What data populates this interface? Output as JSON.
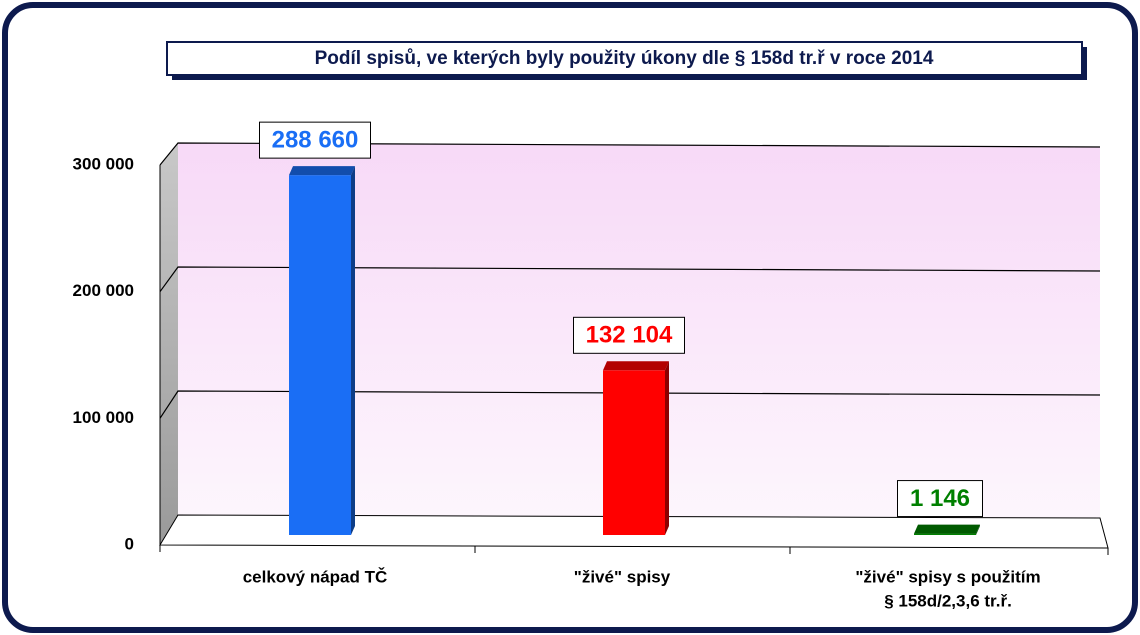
{
  "chart_data": {
    "type": "bar3d",
    "title": "Podíl spisů, ve kterých byly použity úkony dle § 158d tr.ř v roce 2014",
    "categories": [
      [
        "celkový nápad TČ"
      ],
      [
        "\"živé\" spisy"
      ],
      [
        "\"živé\" spisy s použitím",
        "§ 158d/2,3,6 tr.ř."
      ]
    ],
    "values": [
      288660,
      132104,
      1146
    ],
    "value_labels": [
      "288 660",
      "132 104",
      "1 146"
    ],
    "colors": [
      "#1a6ef5",
      "#ff0000",
      "#008000"
    ],
    "ylim": [
      0,
      300000
    ],
    "yticks": [
      0,
      {
        "value": 100000,
        "label": "100 000"
      },
      {
        "value": 200000,
        "label": "200 000"
      },
      {
        "value": 300000,
        "label": "300 000"
      }
    ],
    "grid": true
  }
}
